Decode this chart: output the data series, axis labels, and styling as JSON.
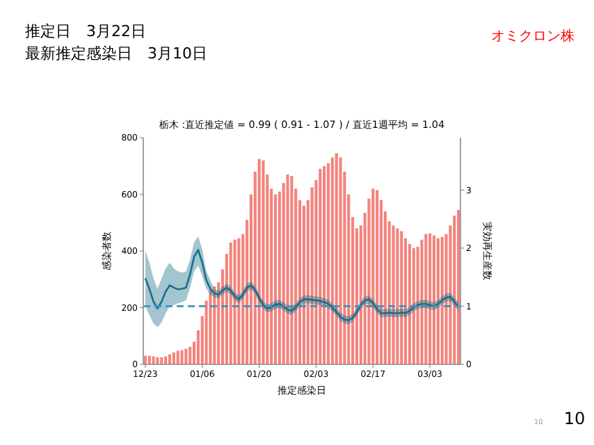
{
  "chart_data": {
    "type": "bar",
    "title": "栃木 :直近推定値 = 0.99 ( 0.91 - 1.07 ) / 直近1週平均 = 1.04",
    "annotations": [
      "推定日　3月22日",
      "最新推定感染日　3月10日",
      "オミクロン株",
      "10",
      "10"
    ],
    "xlabel": "推定感染日",
    "ylabel": "感染者数",
    "y2label": "実効再生産数",
    "categories": [
      "12/23",
      null,
      null,
      null,
      null,
      null,
      null,
      null,
      null,
      null,
      null,
      null,
      null,
      null,
      "01/06",
      null,
      null,
      null,
      null,
      null,
      null,
      null,
      null,
      null,
      null,
      null,
      null,
      null,
      "01/20",
      null,
      null,
      null,
      null,
      null,
      null,
      null,
      null,
      null,
      null,
      null,
      null,
      null,
      "02/03",
      null,
      null,
      null,
      null,
      null,
      null,
      null,
      null,
      null,
      null,
      null,
      null,
      null,
      "02/17",
      null,
      null,
      null,
      null,
      null,
      null,
      null,
      null,
      null,
      null,
      null,
      null,
      null,
      "03/03",
      null,
      null,
      null,
      null,
      null,
      null,
      null
    ],
    "ylim": [
      0,
      800
    ],
    "yticks": [
      0,
      200,
      400,
      600,
      800
    ],
    "y2lim": [
      0,
      3.9
    ],
    "y2ticks": [
      0,
      1,
      2,
      3
    ],
    "grid": false,
    "ref_lines": [
      {
        "axis": "y2",
        "value": 1,
        "color": "#3a96b8",
        "line_style": "dashed"
      }
    ],
    "series": [
      {
        "color": "#f4837d",
        "values": [
          30,
          30,
          28,
          25,
          25,
          28,
          35,
          42,
          48,
          50,
          55,
          62,
          80,
          120,
          170,
          225,
          260,
          275,
          290,
          335,
          390,
          430,
          440,
          445,
          460,
          510,
          600,
          680,
          725,
          720,
          670,
          620,
          600,
          610,
          640,
          670,
          665,
          620,
          580,
          560,
          580,
          625,
          650,
          690,
          700,
          710,
          730,
          745,
          730,
          680,
          600,
          520,
          480,
          490,
          535,
          585,
          620,
          615,
          580,
          540,
          505,
          490,
          480,
          470,
          445,
          425,
          410,
          415,
          440,
          460,
          462,
          455,
          445,
          450,
          460,
          490,
          525,
          545
        ]
      },
      {
        "type": "line",
        "axis": "y2",
        "color": "#1a6f8a",
        "marker": "none",
        "line_style": "solid",
        "values": [
          1.48,
          1.3,
          1.08,
          0.96,
          1.08,
          1.25,
          1.36,
          1.32,
          1.29,
          1.3,
          1.32,
          1.55,
          1.85,
          1.97,
          1.75,
          1.45,
          1.3,
          1.22,
          1.2,
          1.27,
          1.32,
          1.27,
          1.17,
          1.12,
          1.2,
          1.32,
          1.36,
          1.28,
          1.14,
          1.02,
          0.96,
          0.98,
          1.03,
          1.04,
          1.0,
          0.94,
          0.92,
          0.98,
          1.07,
          1.12,
          1.12,
          1.11,
          1.1,
          1.09,
          1.07,
          1.04,
          0.98,
          0.9,
          0.82,
          0.77,
          0.76,
          0.8,
          0.9,
          1.02,
          1.1,
          1.12,
          1.05,
          0.95,
          0.88,
          0.88,
          0.89,
          0.88,
          0.88,
          0.89,
          0.88,
          0.92,
          0.98,
          1.02,
          1.04,
          1.04,
          1.02,
          1.0,
          1.04,
          1.1,
          1.15,
          1.16,
          1.08,
          0.99
        ],
        "lower": [
          1.0,
          0.85,
          0.7,
          0.64,
          0.72,
          0.88,
          1.0,
          1.02,
          1.05,
          1.07,
          1.1,
          1.32,
          1.6,
          1.7,
          1.52,
          1.3,
          1.2,
          1.15,
          1.13,
          1.2,
          1.25,
          1.2,
          1.1,
          1.05,
          1.13,
          1.25,
          1.29,
          1.21,
          1.07,
          0.95,
          0.89,
          0.91,
          0.96,
          0.97,
          0.93,
          0.87,
          0.85,
          0.91,
          1.0,
          1.05,
          1.05,
          1.04,
          1.03,
          1.02,
          1.0,
          0.97,
          0.91,
          0.83,
          0.75,
          0.7,
          0.69,
          0.73,
          0.83,
          0.95,
          1.03,
          1.05,
          0.98,
          0.88,
          0.81,
          0.81,
          0.82,
          0.81,
          0.81,
          0.82,
          0.81,
          0.85,
          0.91,
          0.95,
          0.97,
          0.97,
          0.95,
          0.93,
          0.97,
          1.03,
          1.08,
          1.09,
          1.01,
          0.91
        ],
        "upper": [
          1.96,
          1.75,
          1.48,
          1.3,
          1.48,
          1.65,
          1.75,
          1.65,
          1.6,
          1.58,
          1.6,
          1.8,
          2.1,
          2.2,
          1.98,
          1.6,
          1.45,
          1.29,
          1.27,
          1.34,
          1.39,
          1.34,
          1.24,
          1.19,
          1.27,
          1.39,
          1.43,
          1.35,
          1.21,
          1.09,
          1.03,
          1.05,
          1.1,
          1.11,
          1.07,
          1.01,
          0.99,
          1.05,
          1.14,
          1.19,
          1.19,
          1.18,
          1.17,
          1.16,
          1.14,
          1.11,
          1.05,
          0.97,
          0.89,
          0.84,
          0.83,
          0.87,
          0.97,
          1.09,
          1.17,
          1.19,
          1.12,
          1.02,
          0.95,
          0.95,
          0.96,
          0.95,
          0.95,
          0.96,
          0.95,
          0.99,
          1.05,
          1.09,
          1.11,
          1.11,
          1.09,
          1.07,
          1.11,
          1.17,
          1.22,
          1.23,
          1.15,
          1.07
        ]
      }
    ]
  }
}
